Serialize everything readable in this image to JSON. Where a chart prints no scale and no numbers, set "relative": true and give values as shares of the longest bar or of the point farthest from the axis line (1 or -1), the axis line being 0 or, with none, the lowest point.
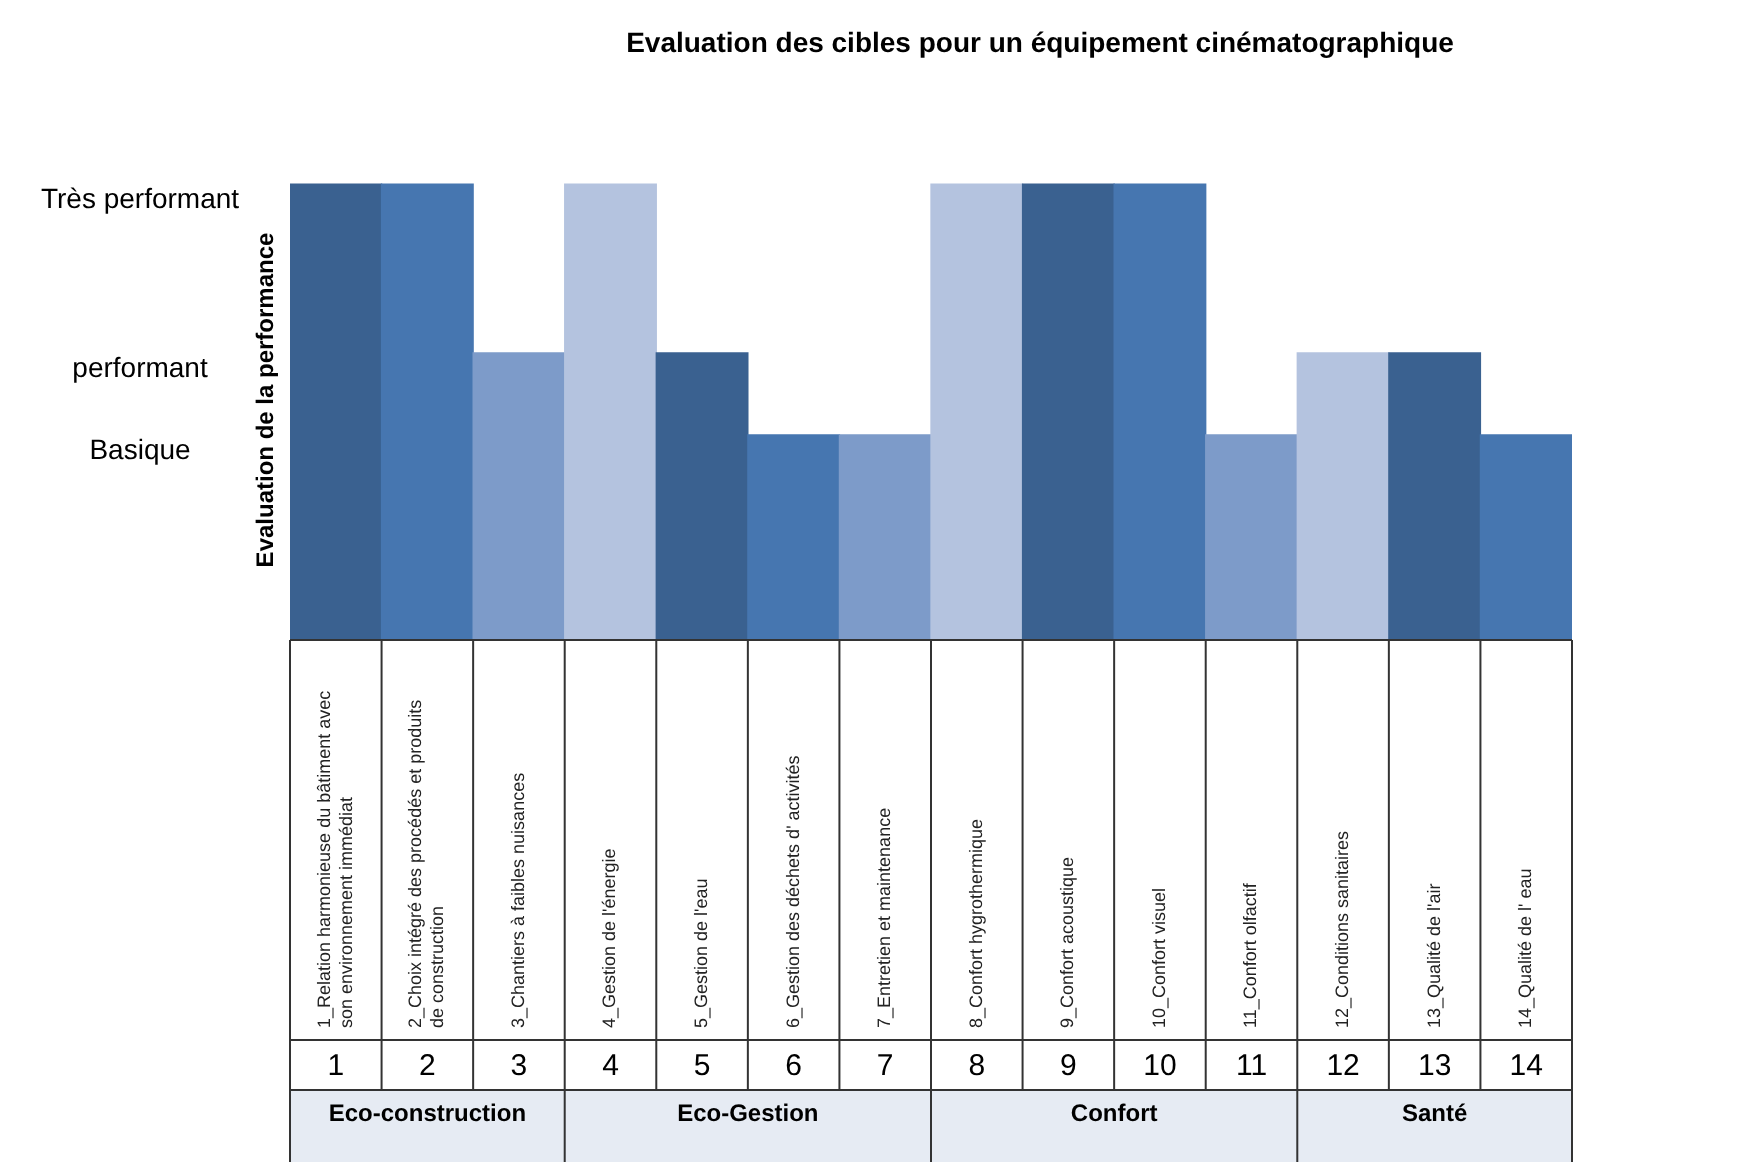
{
  "chart_data": {
    "type": "bar",
    "title": "Evaluation des cibles pour un équipement cinématographique",
    "ylabel": "Evaluation de la performance",
    "categories": [
      "1_Relation harmonieuse du bâtiment avec son environnement immédiat",
      "2_Choix intégré des procédés et produits de construction",
      "3_Chantiers à faibles nuisances",
      "4_Gestion de l'énergie",
      "5_Gestion de l'eau",
      "6_Gestion des déchets d' activités",
      "7_Entretien et maintenance",
      "8_Confort hygrothermique",
      "9_Confort acoustique",
      "10_Confort visuel",
      "11_Confort olfactif",
      "12_Conditions sanitaires",
      "13_Qualité de l'air",
      "14_Qualité de l' eau"
    ],
    "values": [
      1,
      1,
      0.63,
      1,
      0.63,
      0.45,
      0.45,
      1,
      1,
      1,
      0.45,
      0.63,
      0.63,
      0.45
    ],
    "colors": [
      "#3a6190",
      "#4676b0",
      "#7d9bc9",
      "#b4c3df",
      "#3a6190",
      "#4676b0",
      "#7d9bc9",
      "#b4c3df",
      "#3a6190",
      "#4676b0",
      "#7d9bc9",
      "#b4c3df",
      "#3a6190",
      "#4676b0"
    ],
    "relative": true,
    "annotations": [
      "Très performant",
      "performant",
      "Basique",
      "1",
      "2",
      "3",
      "4",
      "5",
      "6",
      "7",
      "8",
      "9",
      "10",
      "11",
      "12",
      "13",
      "14",
      "Eco-construction",
      "Eco-Gestion",
      "Confort",
      "Santé"
    ]
  }
}
